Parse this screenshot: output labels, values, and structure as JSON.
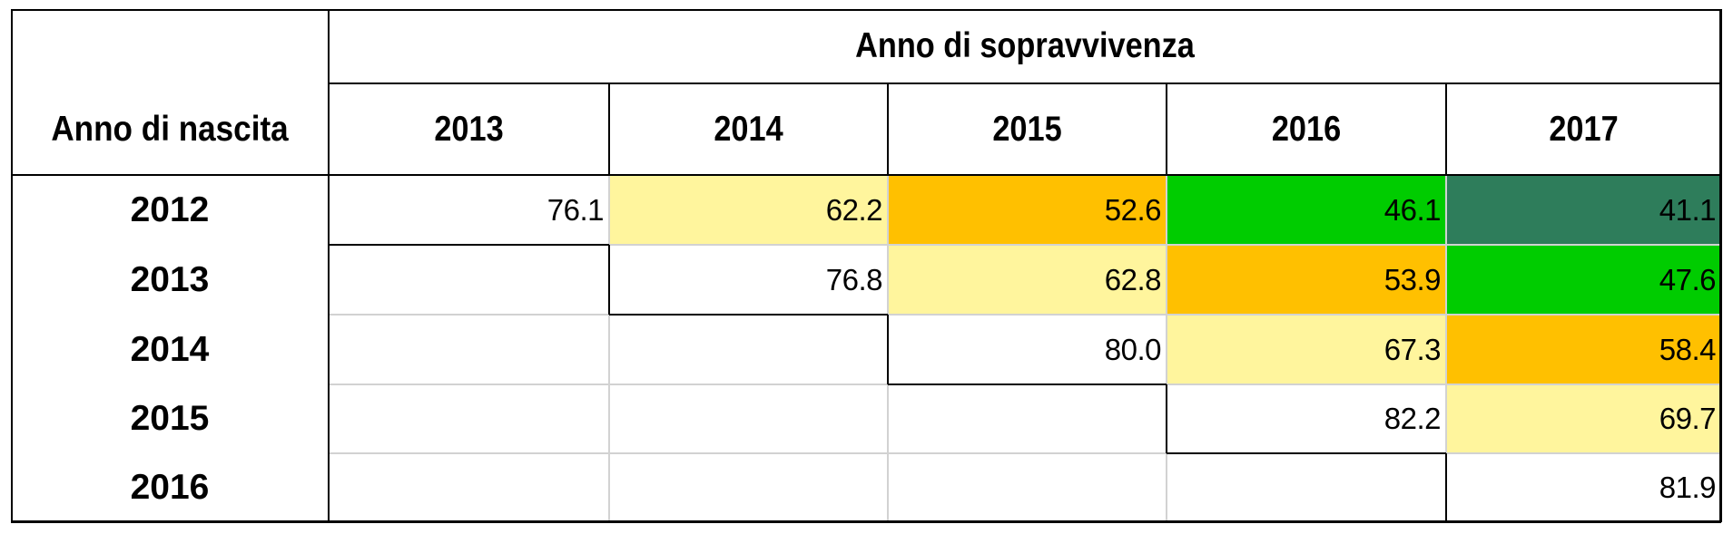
{
  "table": {
    "col_group_header": "Anno di sopravvivenza",
    "row_header_title": "Anno di nascita",
    "columns": [
      "2013",
      "2014",
      "2015",
      "2016",
      "2017"
    ],
    "rows": [
      {
        "label": "2012",
        "cells": [
          {
            "value": "76.1",
            "color": "#ffffff"
          },
          {
            "value": "62.2",
            "color": "#fff59d"
          },
          {
            "value": "52.6",
            "color": "#ffc000"
          },
          {
            "value": "46.1",
            "color": "#00cc00"
          },
          {
            "value": "41.1",
            "color": "#2e7d5b"
          }
        ]
      },
      {
        "label": "2013",
        "cells": [
          {
            "value": "",
            "color": "#ffffff"
          },
          {
            "value": "76.8",
            "color": "#ffffff"
          },
          {
            "value": "62.8",
            "color": "#fff59d"
          },
          {
            "value": "53.9",
            "color": "#ffc000"
          },
          {
            "value": "47.6",
            "color": "#00cc00"
          }
        ]
      },
      {
        "label": "2014",
        "cells": [
          {
            "value": "",
            "color": "#ffffff"
          },
          {
            "value": "",
            "color": "#ffffff"
          },
          {
            "value": "80.0",
            "color": "#ffffff"
          },
          {
            "value": "67.3",
            "color": "#fff59d"
          },
          {
            "value": "58.4",
            "color": "#ffc000"
          }
        ]
      },
      {
        "label": "2015",
        "cells": [
          {
            "value": "",
            "color": "#ffffff"
          },
          {
            "value": "",
            "color": "#ffffff"
          },
          {
            "value": "",
            "color": "#ffffff"
          },
          {
            "value": "82.2",
            "color": "#ffffff"
          },
          {
            "value": "69.7",
            "color": "#fff59d"
          }
        ]
      },
      {
        "label": "2016",
        "cells": [
          {
            "value": "",
            "color": "#ffffff"
          },
          {
            "value": "",
            "color": "#ffffff"
          },
          {
            "value": "",
            "color": "#ffffff"
          },
          {
            "value": "",
            "color": "#ffffff"
          },
          {
            "value": "81.9",
            "color": "#ffffff"
          }
        ]
      }
    ]
  }
}
